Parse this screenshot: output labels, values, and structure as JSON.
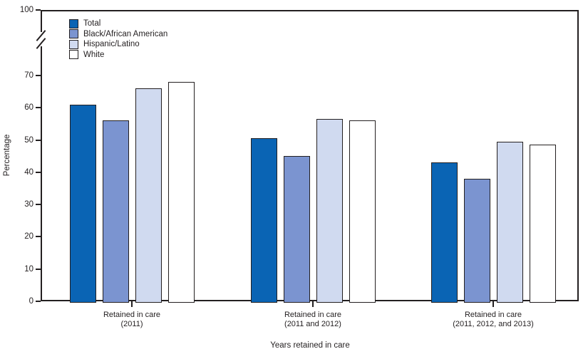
{
  "chart_data": {
    "type": "bar",
    "title": "",
    "ylabel": "Percentage",
    "xlabel": "Years retained in care",
    "ylim": [
      0,
      70
    ],
    "y_ticks": [
      0,
      10,
      20,
      30,
      40,
      50,
      60,
      70
    ],
    "y_break_top_tick": 100,
    "axis_break_between": [
      70,
      100
    ],
    "grid": false,
    "legend_position": "top-left",
    "categories": [
      {
        "line1": "Retained in care",
        "line2": "(2011)"
      },
      {
        "line1": "Retained in care",
        "line2": "(2011 and 2012)"
      },
      {
        "line1": "Retained in care",
        "line2": "(2011, 2012, and 2013)"
      }
    ],
    "series": [
      {
        "name": "Total",
        "color": "#0a64b4",
        "values": [
          61,
          50.5,
          43
        ]
      },
      {
        "name": "Black/African American",
        "color": "#7b94d0",
        "values": [
          56,
          45,
          38
        ]
      },
      {
        "name": "Hispanic/Latino",
        "color": "#d0daf0",
        "values": [
          66,
          56.5,
          49.5
        ]
      },
      {
        "name": "White",
        "color": "#ffffff",
        "values": [
          68,
          56,
          48.5
        ]
      }
    ]
  },
  "colors": {
    "axis": "#231f20",
    "text": "#231f20",
    "background": "#ffffff"
  }
}
